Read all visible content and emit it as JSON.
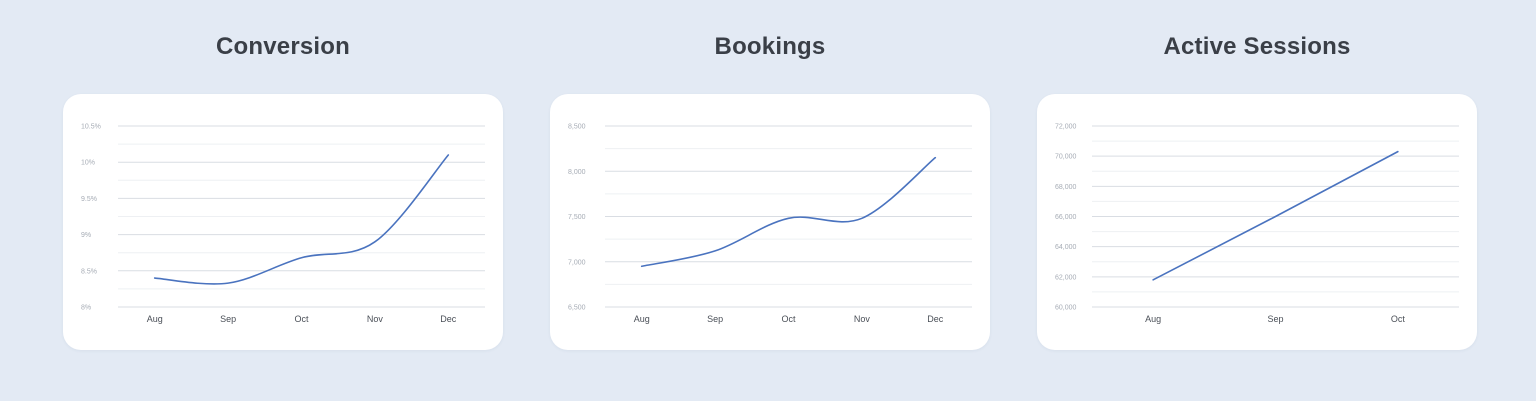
{
  "colors": {
    "background": "#e3eaf4",
    "line": "#4a73bf"
  },
  "chart_data": [
    {
      "type": "line",
      "title": "Conversion",
      "categories": [
        "Aug",
        "Sep",
        "Oct",
        "Nov",
        "Dec"
      ],
      "series": [
        {
          "values": [
            8.4,
            8.33,
            8.68,
            8.9,
            10.1
          ]
        }
      ],
      "ylim": [
        8,
        10.5
      ],
      "y_ticks": [
        8,
        8.5,
        9,
        9.5,
        10,
        10.5
      ],
      "y_tick_labels": [
        "8%",
        "8.5%",
        "9%",
        "9.5%",
        "10%",
        "10.5%"
      ],
      "smooth": true,
      "grid": true,
      "xlabel": "",
      "ylabel": ""
    },
    {
      "type": "line",
      "title": "Bookings",
      "categories": [
        "Aug",
        "Sep",
        "Oct",
        "Nov",
        "Dec"
      ],
      "series": [
        {
          "values": [
            6950,
            7120,
            7480,
            7480,
            8150
          ]
        }
      ],
      "ylim": [
        6500,
        8500
      ],
      "y_ticks": [
        6500,
        7000,
        7500,
        8000,
        8500
      ],
      "y_tick_labels": [
        "6,500",
        "7,000",
        "7,500",
        "8,000",
        "8,500"
      ],
      "smooth": true,
      "grid": true,
      "xlabel": "",
      "ylabel": ""
    },
    {
      "type": "line",
      "title": "Active Sessions",
      "categories": [
        "Aug",
        "Sep",
        "Oct"
      ],
      "series": [
        {
          "values": [
            61800,
            66000,
            70300
          ]
        }
      ],
      "ylim": [
        60000,
        72000
      ],
      "y_ticks": [
        60000,
        62000,
        64000,
        66000,
        68000,
        70000,
        72000
      ],
      "y_tick_labels": [
        "60,000",
        "62,000",
        "64,000",
        "66,000",
        "68,000",
        "70,000",
        "72,000"
      ],
      "smooth": false,
      "grid": true,
      "xlabel": "",
      "ylabel": ""
    }
  ]
}
